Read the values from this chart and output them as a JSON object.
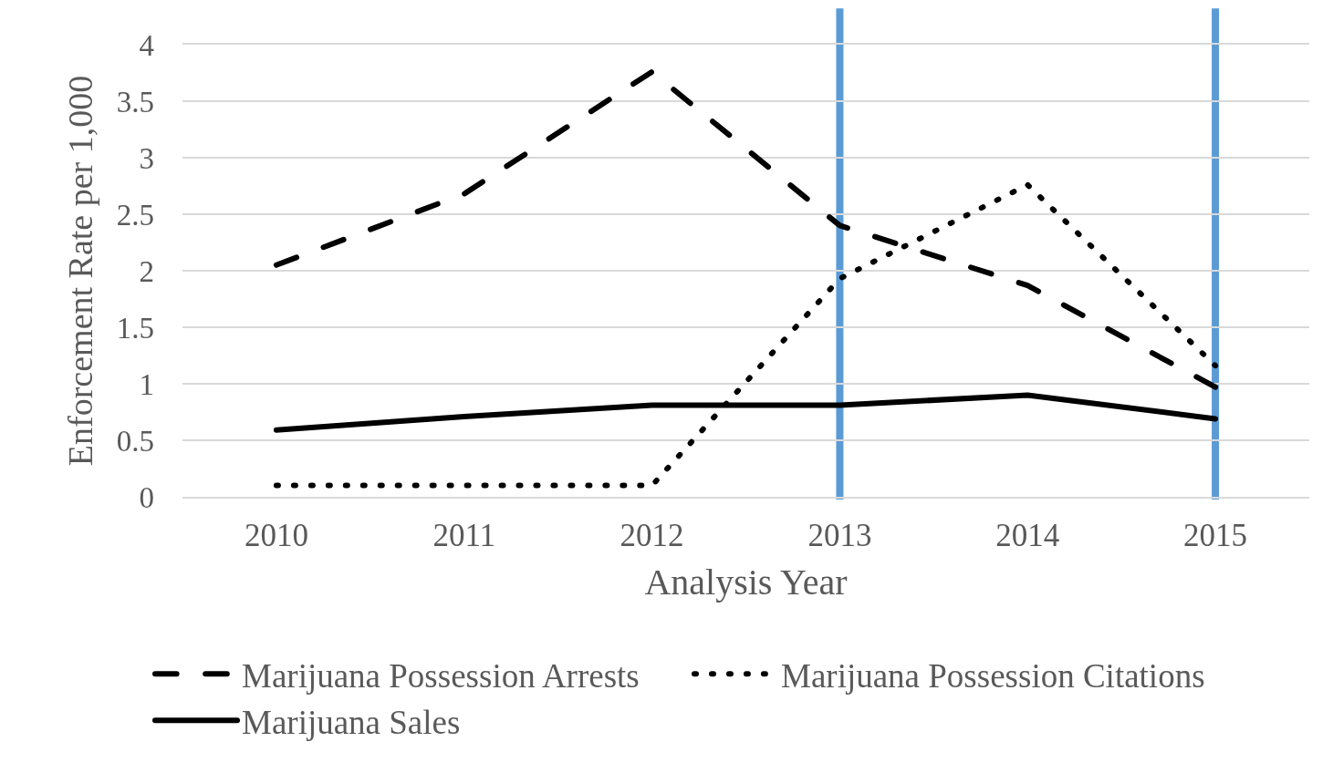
{
  "chart_data": {
    "type": "line",
    "xlabel": "Analysis Year",
    "ylabel": "Enforcement Rate per 1,000",
    "categories": [
      "2010",
      "2011",
      "2012",
      "2013",
      "2014",
      "2015"
    ],
    "series": [
      {
        "name": "Marijuana Possession Arrests",
        "color": "#000000",
        "line_style": "dashed",
        "values": [
          2.05,
          2.68,
          3.76,
          2.4,
          1.87,
          0.97
        ]
      },
      {
        "name": "Marijuana Possession Citations",
        "color": "#000000",
        "line_style": "dotted",
        "values": [
          0.1,
          0.1,
          0.1,
          1.93,
          2.76,
          1.16
        ]
      },
      {
        "name": "Marijuana Sales",
        "color": "#000000",
        "line_style": "solid",
        "values": [
          0.59,
          0.71,
          0.81,
          0.81,
          0.9,
          0.69
        ]
      }
    ],
    "ylim": [
      0,
      4
    ],
    "yticks": [
      0,
      0.5,
      1,
      1.5,
      2,
      2.5,
      3,
      3.5,
      4
    ],
    "grid": "y",
    "legend": "bottom",
    "ref_lines": [
      {
        "axis": "x",
        "value": "2013",
        "color": "#5b9bd5"
      },
      {
        "axis": "x",
        "value": "2015",
        "color": "#5b9bd5"
      }
    ]
  }
}
